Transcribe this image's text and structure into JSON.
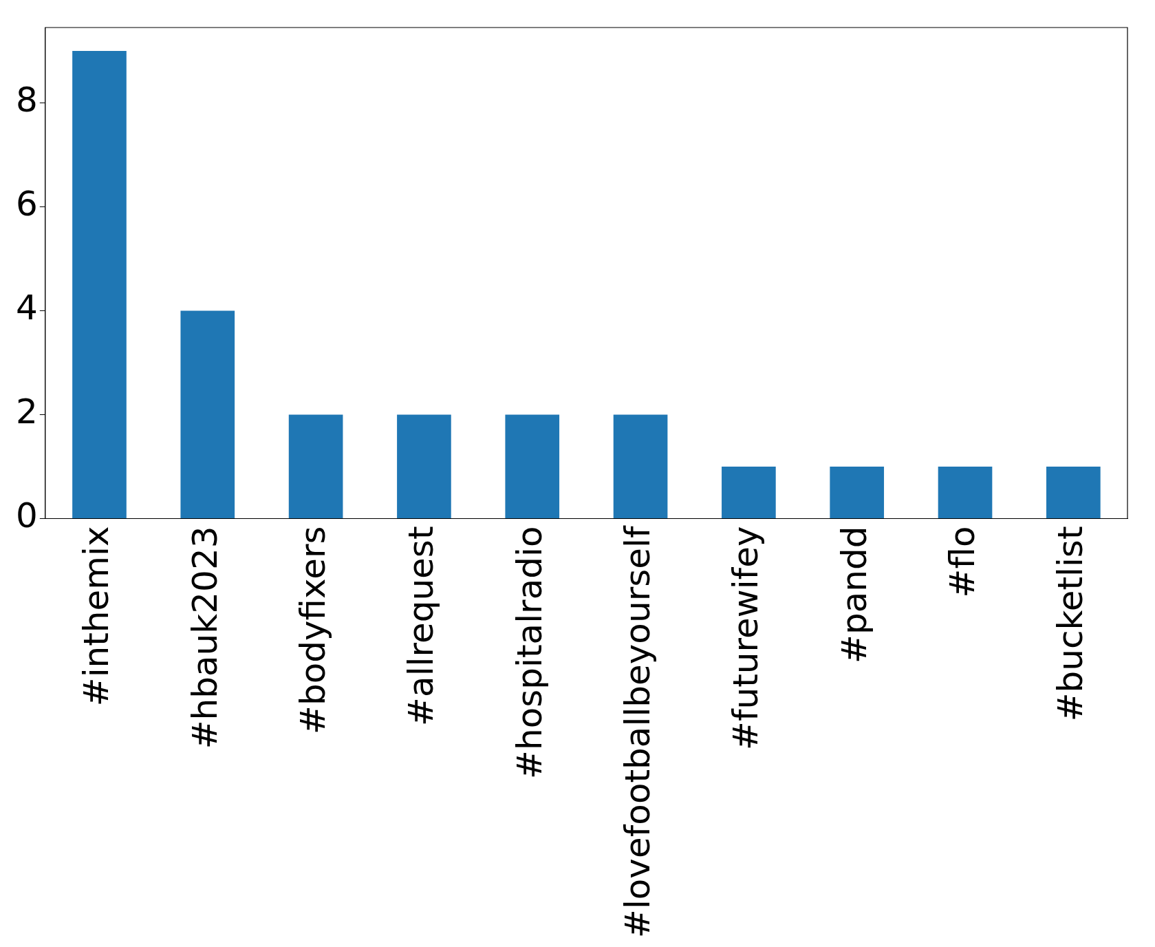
{
  "chart_data": {
    "type": "bar",
    "categories": [
      "#inthemix",
      "#hbauk2023",
      "#bodyfixers",
      "#allrequest",
      "#hospitalradio",
      "#lovefootballbeyourself",
      "#futurewifey",
      "#pandd",
      "#flo",
      "#bucketlist"
    ],
    "values": [
      9,
      4,
      2,
      2,
      2,
      2,
      1,
      1,
      1,
      1
    ],
    "color": "#1f77b4",
    "ylim": [
      0,
      9.45
    ],
    "yticks": [
      0,
      2,
      4,
      6,
      8
    ],
    "grid": false,
    "legend": false
  }
}
